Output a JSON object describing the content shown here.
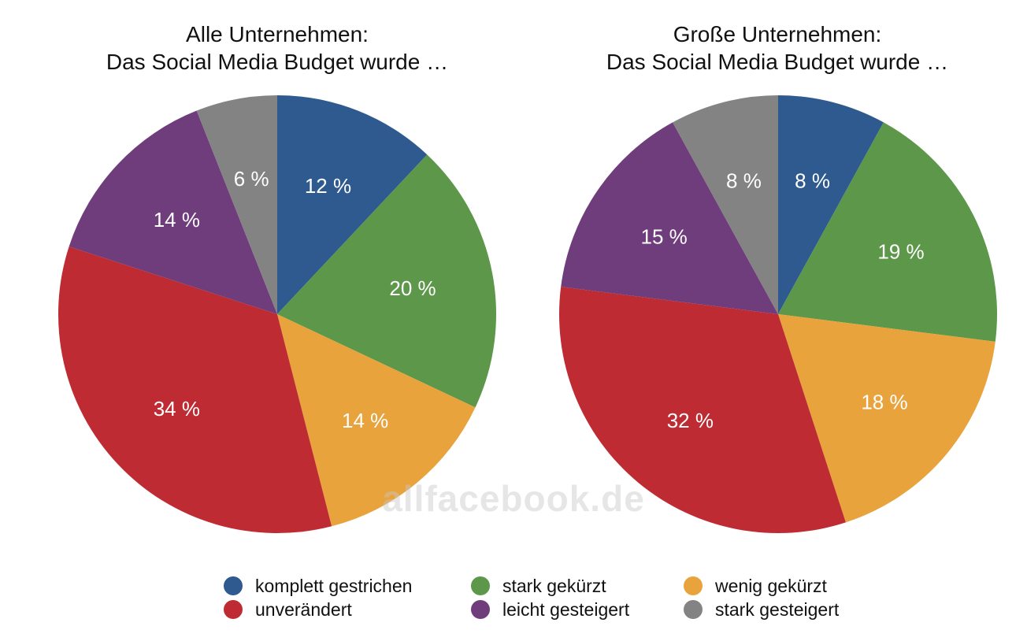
{
  "watermark": "allfacebook.de",
  "legend": [
    {
      "label": "komplett gestrichen",
      "color": "#2f5a8f"
    },
    {
      "label": "stark gekürzt",
      "color": "#5c974a"
    },
    {
      "label": "wenig gekürzt",
      "color": "#e8a33c"
    },
    {
      "label": "unverändert",
      "color": "#bf2b32"
    },
    {
      "label": "leicht gesteigert",
      "color": "#6f3d7b"
    },
    {
      "label": "stark gesteigert",
      "color": "#838383"
    }
  ],
  "chart_data": [
    {
      "type": "pie",
      "title_lines": [
        "Alle Unternehmen:",
        "Das Social Media Budget wurde …"
      ],
      "categories": [
        "komplett gestrichen",
        "stark gekürzt",
        "wenig gekürzt",
        "unverändert",
        "leicht gesteigert",
        "stark gesteigert"
      ],
      "values": [
        12,
        20,
        14,
        34,
        14,
        6
      ],
      "labels": [
        "12 %",
        "20 %",
        "14 %",
        "34 %",
        "14 %",
        "6 %"
      ],
      "colors": [
        "#2f5a8f",
        "#5c974a",
        "#e8a33c",
        "#bf2b32",
        "#6f3d7b",
        "#838383"
      ],
      "start": "12 o'clock",
      "direction": "clockwise"
    },
    {
      "type": "pie",
      "title_lines": [
        "Große Unternehmen:",
        "Das Social Media Budget wurde …"
      ],
      "categories": [
        "komplett gestrichen",
        "stark gekürzt",
        "wenig gekürzt",
        "unverändert",
        "leicht gesteigert",
        "stark gesteigert"
      ],
      "values": [
        8,
        19,
        18,
        32,
        15,
        8
      ],
      "labels": [
        "8 %",
        "19 %",
        "18 %",
        "32 %",
        "15 %",
        "8 %"
      ],
      "colors": [
        "#2f5a8f",
        "#5c974a",
        "#e8a33c",
        "#bf2b32",
        "#6f3d7b",
        "#838383"
      ],
      "start": "12 o'clock",
      "direction": "clockwise"
    }
  ]
}
